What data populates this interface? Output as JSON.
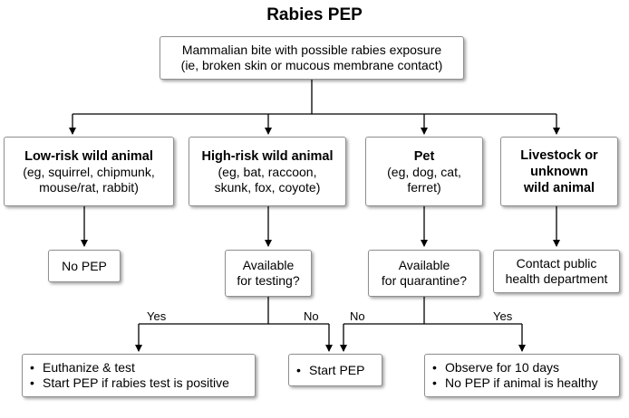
{
  "title": "Rabies PEP",
  "start": {
    "line1": "Mammalian bite with possible rabies exposure",
    "line2": "(ie, broken skin or mucous membrane contact)"
  },
  "categories": [
    {
      "head1": "Low-risk wild animal",
      "head2": "",
      "detail1": "(eg, squirrel, chipmunk,",
      "detail2": "mouse/rat, rabbit)"
    },
    {
      "head1": "High-risk wild animal",
      "head2": "",
      "detail1": "(eg, bat, raccoon,",
      "detail2": "skunk, fox, coyote)"
    },
    {
      "head1": "Pet",
      "head2": "",
      "detail1": "(eg, dog, cat,",
      "detail2": "ferret)"
    },
    {
      "head1": "Livestock or",
      "head2": "unknown",
      "head3": "wild animal"
    }
  ],
  "outcomes": {
    "no_pep": "No PEP",
    "testing_q1": "Available",
    "testing_q2": "for testing?",
    "quarantine_q1": "Available",
    "quarantine_q2": "for quarantine?",
    "contact1": "Contact public",
    "contact2": "health department"
  },
  "edge_labels": {
    "test_yes": "Yes",
    "test_no": "No",
    "quar_no": "No",
    "quar_yes": "Yes"
  },
  "finals": {
    "euthanize": [
      "Euthanize & test",
      "Start PEP if rabies test is positive"
    ],
    "start_pep": [
      "Start PEP"
    ],
    "observe": [
      "Observe for 10 days",
      "No PEP if animal is healthy"
    ]
  }
}
